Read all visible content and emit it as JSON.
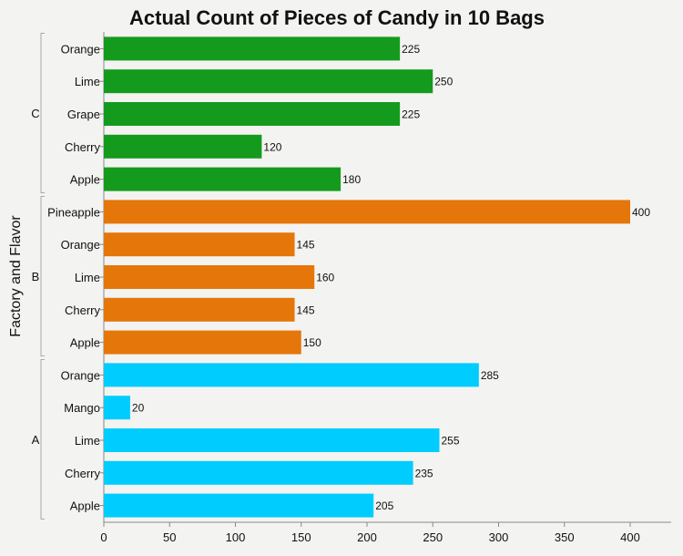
{
  "chart_data": {
    "type": "bar",
    "orientation": "horizontal",
    "title": "Actual Count of Pieces of Candy in 10 Bags",
    "xlabel": "",
    "ylabel": "Factory  and Flavor",
    "xlim": [
      0,
      430
    ],
    "xticks": [
      0,
      50,
      100,
      150,
      200,
      250,
      300,
      350,
      400
    ],
    "grid": false,
    "legend": "none",
    "groups": [
      {
        "name": "C",
        "color": "#149b1e",
        "categories": [
          "Orange",
          "Lime",
          "Grape",
          "Cherry",
          "Apple"
        ],
        "values": [
          225,
          250,
          225,
          120,
          180
        ]
      },
      {
        "name": "B",
        "color": "#e5760a",
        "categories": [
          "Pineapple",
          "Orange",
          "Lime",
          "Cherry",
          "Apple"
        ],
        "values": [
          400,
          145,
          160,
          145,
          150
        ]
      },
      {
        "name": "A",
        "color": "#00ccfd",
        "categories": [
          "Orange",
          "Mango",
          "Lime",
          "Cherry",
          "Apple"
        ],
        "values": [
          285,
          20,
          255,
          235,
          205
        ]
      }
    ]
  }
}
